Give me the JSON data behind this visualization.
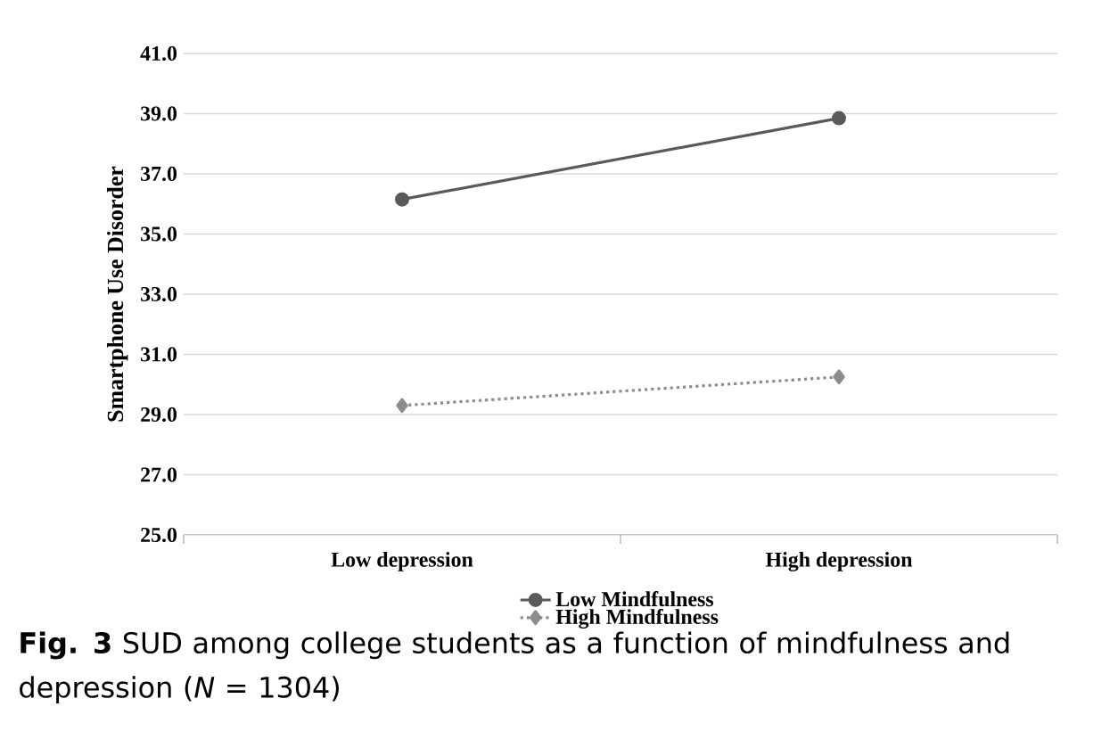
{
  "chart_data": {
    "type": "line",
    "ylabel": "Smartphone Use Disorder",
    "categories": [
      "Low depression",
      "High depression"
    ],
    "series": [
      {
        "name": "Low Mindfulness",
        "color": "#5a5a5a",
        "values": [
          36.15,
          38.85
        ],
        "marker": "circle",
        "line_style": "solid"
      },
      {
        "name": "High Mindfulness",
        "color": "#8c8c8c",
        "values": [
          29.3,
          30.25
        ],
        "marker": "diamond",
        "line_style": "dotted"
      }
    ],
    "ylim": [
      25,
      41
    ],
    "yticks": [
      {
        "value": 25,
        "label": "25.0"
      },
      {
        "value": 27,
        "label": "27.0"
      },
      {
        "value": 29,
        "label": "29.0"
      },
      {
        "value": 31,
        "label": "31.0"
      },
      {
        "value": 33,
        "label": "33.0"
      },
      {
        "value": 35,
        "label": "35.0"
      },
      {
        "value": 37,
        "label": "37.0"
      },
      {
        "value": 39,
        "label": "39.0"
      },
      {
        "value": 41,
        "label": "41.0"
      }
    ],
    "grid": "y",
    "legend": "bottom",
    "annotations": [
      "**Fig. 3** SUD among college students as a function of mindfulness and depression (*N* = 1304)"
    ]
  }
}
